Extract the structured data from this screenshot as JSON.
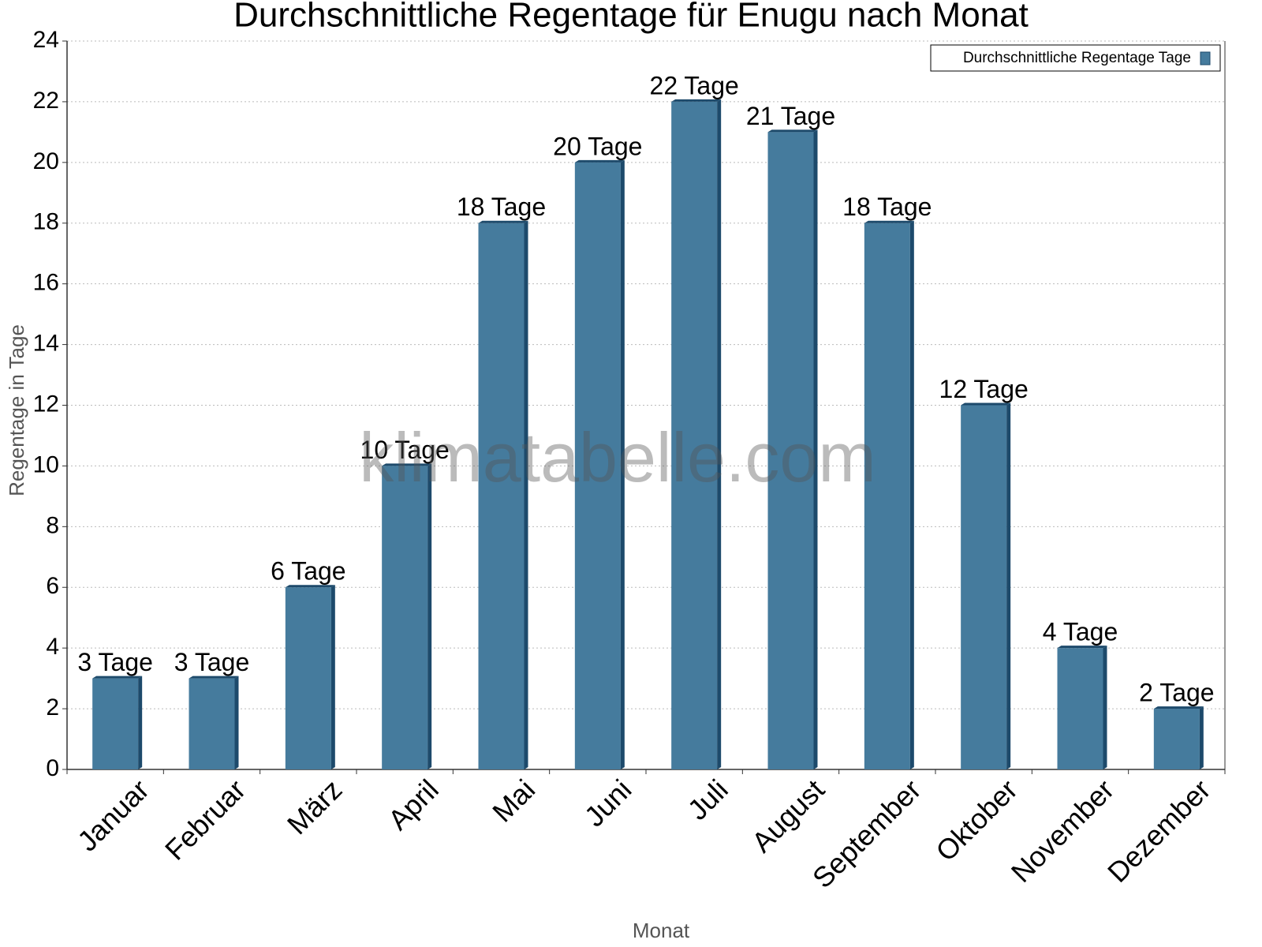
{
  "chart_data": {
    "type": "bar",
    "title": "Durchschnittliche Regentage für Enugu nach Monat",
    "x_label": "Monat",
    "y_label": "Regentage in Tage",
    "watermark": "klimatabelle.com",
    "categories": [
      "Januar",
      "Februar",
      "März",
      "April",
      "Mai",
      "Juni",
      "Juli",
      "August",
      "September",
      "Oktober",
      "November",
      "Dezember"
    ],
    "series": [
      {
        "name": "Durchschnittliche Regentage Tage",
        "color": "#457b9d",
        "values": [
          3,
          3,
          6,
          10,
          18,
          20,
          22,
          21,
          18,
          12,
          4,
          2
        ],
        "value_labels": [
          "3 Tage",
          "3 Tage",
          "6 Tage",
          "10 Tage",
          "18 Tage",
          "20 Tage",
          "22 Tage",
          "21 Tage",
          "18 Tage",
          "12 Tage",
          "4 Tage",
          "2 Tage"
        ]
      }
    ],
    "ylim": [
      0,
      24
    ],
    "yticks": [
      0,
      2,
      4,
      6,
      8,
      10,
      12,
      14,
      16,
      18,
      20,
      22,
      24
    ],
    "grid": true,
    "legend": "top-right"
  }
}
